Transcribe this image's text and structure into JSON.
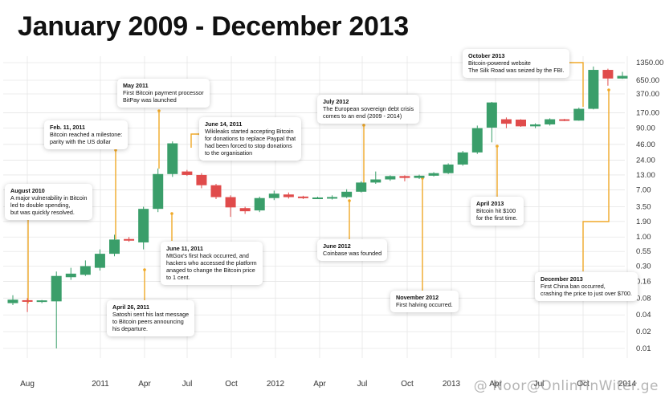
{
  "title": "January 2009 - December 2013",
  "watermark": "@ Noor@OnlinFinWiter.ge",
  "colors": {
    "up": "#3a9e6a",
    "down": "#e04b4b",
    "callout_line": "#f0a928",
    "grid": "#e6e6e6",
    "axis_text": "#333333"
  },
  "chart_data": {
    "type": "candlestick",
    "y_scale": "log",
    "y_ticks": [
      "0.01",
      "0.02",
      "0.04",
      "0.08",
      "0.16",
      "0.30",
      "0.55",
      "1.00",
      "1.90",
      "3.50",
      "7.00",
      "13.00",
      "24.00",
      "46.00",
      "90.00",
      "170.00",
      "370.00",
      "650.00",
      "1350.00"
    ],
    "x_ticks": [
      "Aug",
      "2011",
      "Apr",
      "Jul",
      "Oct",
      "2012",
      "Apr",
      "Jul",
      "Oct",
      "2013",
      "Apr",
      "Jul",
      "Oct",
      "2014"
    ],
    "candles": [
      {
        "o": 0.065,
        "c": 0.075,
        "h": 0.09,
        "l": 0.06
      },
      {
        "o": 0.072,
        "c": 0.07,
        "h": 0.08,
        "l": 0.045
      },
      {
        "o": 0.07,
        "c": 0.071,
        "h": 0.074,
        "l": 0.065
      },
      {
        "o": 0.07,
        "c": 0.2,
        "h": 0.24,
        "l": 0.01
      },
      {
        "o": 0.19,
        "c": 0.22,
        "h": 0.28,
        "l": 0.17
      },
      {
        "o": 0.21,
        "c": 0.3,
        "h": 0.38,
        "l": 0.2
      },
      {
        "o": 0.28,
        "c": 0.5,
        "h": 0.6,
        "l": 0.25
      },
      {
        "o": 0.5,
        "c": 0.9,
        "h": 1.1,
        "l": 0.45
      },
      {
        "o": 0.92,
        "c": 0.86,
        "h": 1.0,
        "l": 0.82
      },
      {
        "o": 0.8,
        "c": 3.2,
        "h": 3.5,
        "l": 0.6
      },
      {
        "o": 3.2,
        "c": 13.5,
        "h": 17.0,
        "l": 2.8
      },
      {
        "o": 13.5,
        "c": 48.0,
        "h": 52.0,
        "l": 12.0
      },
      {
        "o": 15.0,
        "c": 13.0,
        "h": 16.0,
        "l": 12.5
      },
      {
        "o": 13.0,
        "c": 8.5,
        "h": 14.0,
        "l": 7.5
      },
      {
        "o": 8.5,
        "c": 5.2,
        "h": 9.0,
        "l": 4.8
      },
      {
        "o": 5.2,
        "c": 3.4,
        "h": 5.6,
        "l": 2.3
      },
      {
        "o": 3.3,
        "c": 2.9,
        "h": 3.5,
        "l": 2.6
      },
      {
        "o": 3.0,
        "c": 5.0,
        "h": 5.3,
        "l": 2.8
      },
      {
        "o": 5.0,
        "c": 6.0,
        "h": 6.8,
        "l": 4.6
      },
      {
        "o": 5.8,
        "c": 5.2,
        "h": 6.3,
        "l": 4.9
      },
      {
        "o": 5.2,
        "c": 5.1,
        "h": 5.5,
        "l": 4.8
      },
      {
        "o": 4.9,
        "c": 5.0,
        "h": 5.3,
        "l": 4.8
      },
      {
        "o": 4.9,
        "c": 5.2,
        "h": 5.6,
        "l": 4.7
      },
      {
        "o": 5.2,
        "c": 6.5,
        "h": 7.2,
        "l": 5.0
      },
      {
        "o": 6.5,
        "c": 9.5,
        "h": 10.0,
        "l": 6.3
      },
      {
        "o": 9.5,
        "c": 10.8,
        "h": 15.0,
        "l": 9.0
      },
      {
        "o": 10.8,
        "c": 12.4,
        "h": 12.8,
        "l": 10.2
      },
      {
        "o": 12.4,
        "c": 11.5,
        "h": 12.8,
        "l": 10.0
      },
      {
        "o": 11.5,
        "c": 12.6,
        "h": 13.2,
        "l": 11.0
      },
      {
        "o": 12.6,
        "c": 14.0,
        "h": 14.6,
        "l": 12.2
      },
      {
        "o": 14.0,
        "c": 20.0,
        "h": 21.0,
        "l": 13.5
      },
      {
        "o": 20.0,
        "c": 33.0,
        "h": 35.0,
        "l": 19.0
      },
      {
        "o": 33.0,
        "c": 90.0,
        "h": 100.0,
        "l": 31.0
      },
      {
        "o": 92.0,
        "c": 260.0,
        "h": 266.0,
        "l": 50.0
      },
      {
        "o": 130.0,
        "c": 108.0,
        "h": 140.0,
        "l": 90.0
      },
      {
        "o": 128.0,
        "c": 97.0,
        "h": 130.0,
        "l": 95.0
      },
      {
        "o": 97.0,
        "c": 105.0,
        "h": 110.0,
        "l": 90.0
      },
      {
        "o": 105.0,
        "c": 130.0,
        "h": 135.0,
        "l": 100.0
      },
      {
        "o": 128.0,
        "c": 123.0,
        "h": 132.0,
        "l": 120.0
      },
      {
        "o": 123.0,
        "c": 200.0,
        "h": 210.0,
        "l": 122.0
      },
      {
        "o": 200.0,
        "c": 1000.0,
        "h": 1150.0,
        "l": 195.0
      },
      {
        "o": 1000.0,
        "c": 700.0,
        "h": 1050.0,
        "l": 520.0
      },
      {
        "o": 700.0,
        "c": 780.0,
        "h": 920.0,
        "l": 690.0
      }
    ]
  },
  "annotations": [
    {
      "date": "August 2010",
      "text": "A major vulnerability in Bitcoin\nled to double spending,\nbut was quickly resolved."
    },
    {
      "date": "Feb. 11, 2011",
      "text": "Bitcoin reached a milestone:\nparity with the US dollar"
    },
    {
      "date": "May 2011",
      "text": "First Bitcoin payment processor\nBitPay was launched"
    },
    {
      "date": "June 14, 2011",
      "text": "Wikileaks started accepting Bitcoin\nfor donations to replace Paypal that\nhad been forced to stop donations\nto the organisation"
    },
    {
      "date": "April 26, 2011",
      "text": "Satoshi sent his last message\nto Bitcoin peers announcing\nhis departure."
    },
    {
      "date": "June 11, 2011",
      "text": "MtGox's first hack occurred, and\nhackers who accessed the platform\nanaged to change the Bitcoin price\nto 1 cent."
    },
    {
      "date": "July 2012",
      "text": "The European sovereign debt crisis\ncomes to an end (2009 - 2014)"
    },
    {
      "date": "June 2012",
      "text": "Coinbase was founded"
    },
    {
      "date": "November 2012",
      "text": "First halving occurred."
    },
    {
      "date": "April 2013",
      "text": "Bitcoin hit $100\nfor the first time."
    },
    {
      "date": "October 2013",
      "text": "Bitcoin-powered website\nThe Silk Road was seized by the FBI."
    },
    {
      "date": "December 2013",
      "text": "First China ban occurred,\ncrashing the price to just over $700."
    }
  ]
}
